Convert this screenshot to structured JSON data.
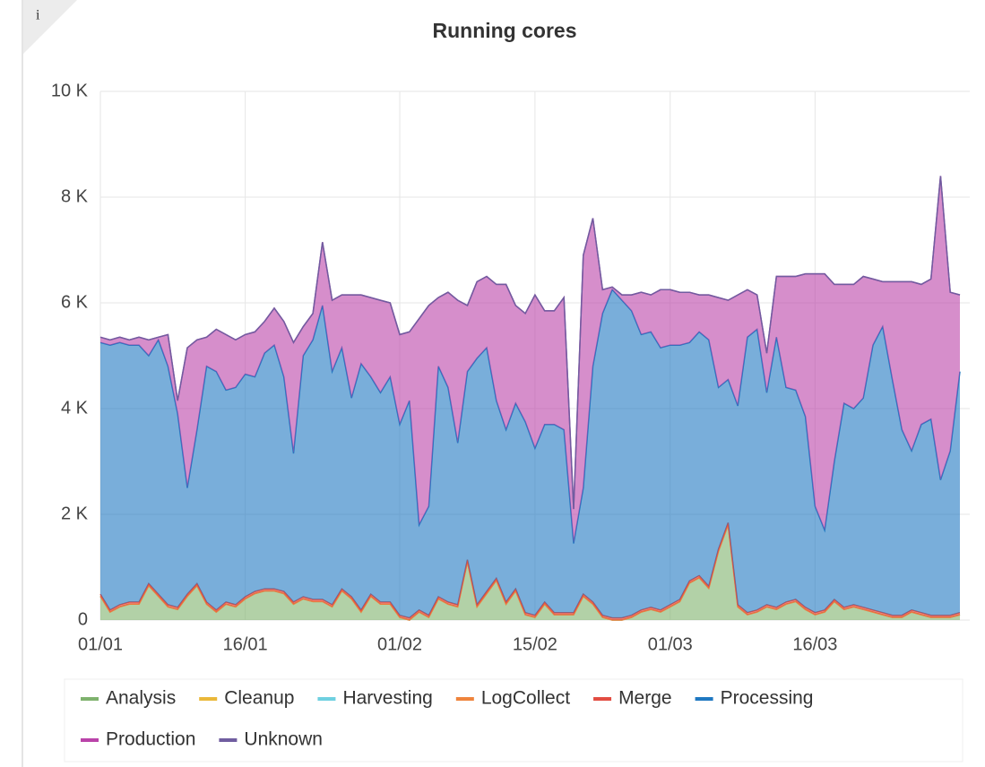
{
  "chart_data": {
    "type": "stacked_area",
    "title": "Running cores",
    "categories": [
      "01/01",
      null,
      null,
      null,
      null,
      null,
      null,
      null,
      null,
      null,
      null,
      null,
      null,
      null,
      null,
      "16/01",
      null,
      null,
      null,
      null,
      null,
      null,
      null,
      null,
      null,
      null,
      null,
      null,
      null,
      null,
      null,
      "01/02",
      null,
      null,
      null,
      null,
      null,
      null,
      null,
      null,
      null,
      null,
      null,
      null,
      null,
      "15/02",
      null,
      null,
      null,
      null,
      null,
      null,
      null,
      null,
      null,
      null,
      null,
      null,
      null,
      "01/03",
      null,
      null,
      null,
      null,
      null,
      null,
      null,
      null,
      null,
      null,
      null,
      null,
      null,
      null,
      "16/03",
      null,
      null,
      null,
      null,
      null,
      null,
      null,
      null,
      null,
      null,
      null,
      null,
      null,
      null,
      null
    ],
    "ylim": [
      0,
      10000
    ],
    "yticks": [
      0,
      {
        "value": 2000,
        "label": "2 K"
      },
      {
        "value": 4000,
        "label": "4 K"
      },
      {
        "value": 6000,
        "label": "6 K"
      },
      {
        "value": 8000,
        "label": "8 K"
      },
      {
        "value": 10000,
        "label": "10 K"
      }
    ],
    "grid": true,
    "legend": "bottom",
    "series": [
      {
        "name": "Analysis",
        "color": "#7eb26d",
        "values": [
          450,
          150,
          250,
          300,
          300,
          650,
          450,
          250,
          200,
          450,
          650,
          300,
          150,
          300,
          250,
          400,
          500,
          550,
          550,
          500,
          300,
          400,
          350,
          350,
          250,
          550,
          400,
          150,
          450,
          300,
          300,
          50,
          0,
          150,
          50,
          400,
          300,
          250,
          1100,
          250,
          500,
          750,
          300,
          550,
          100,
          50,
          300,
          100,
          100,
          100,
          450,
          300,
          50,
          0,
          0,
          50,
          150,
          200,
          150,
          250,
          350,
          700,
          800,
          600,
          1300,
          1800,
          250,
          100,
          150,
          250,
          200,
          300,
          350,
          200,
          100,
          150,
          350,
          200,
          250,
          200,
          150,
          100,
          50,
          50,
          150,
          100,
          50,
          50,
          50,
          100
        ]
      },
      {
        "name": "Cleanup",
        "color": "#eab839",
        "values": [
          0,
          0,
          0,
          0,
          0,
          0,
          0,
          0,
          0,
          0,
          0,
          0,
          0,
          0,
          0,
          0,
          0,
          0,
          0,
          0,
          0,
          0,
          0,
          0,
          0,
          0,
          0,
          0,
          0,
          0,
          0,
          0,
          0,
          0,
          0,
          0,
          0,
          0,
          0,
          0,
          0,
          0,
          0,
          0,
          0,
          0,
          0,
          0,
          0,
          0,
          0,
          0,
          0,
          0,
          0,
          0,
          0,
          0,
          0,
          0,
          0,
          0,
          0,
          0,
          0,
          0,
          0,
          0,
          0,
          0,
          0,
          0,
          0,
          0,
          0,
          0,
          0,
          0,
          0,
          0,
          0,
          0,
          0,
          0,
          0,
          0,
          0,
          0,
          0,
          0
        ]
      },
      {
        "name": "Harvesting",
        "color": "#6ed0e0",
        "values": [
          0,
          0,
          0,
          0,
          0,
          0,
          0,
          0,
          0,
          0,
          0,
          0,
          0,
          0,
          0,
          0,
          0,
          0,
          0,
          0,
          0,
          0,
          0,
          0,
          0,
          0,
          0,
          0,
          0,
          0,
          0,
          0,
          0,
          0,
          0,
          0,
          0,
          0,
          0,
          0,
          0,
          0,
          0,
          0,
          0,
          0,
          0,
          0,
          0,
          0,
          0,
          0,
          0,
          0,
          0,
          0,
          0,
          0,
          0,
          0,
          0,
          0,
          0,
          0,
          0,
          0,
          0,
          0,
          0,
          0,
          0,
          0,
          0,
          0,
          0,
          0,
          0,
          0,
          0,
          0,
          0,
          0,
          0,
          0,
          0,
          0,
          0,
          0,
          0,
          0
        ]
      },
      {
        "name": "LogCollect",
        "color": "#ef843c",
        "values": [
          0,
          0,
          0,
          0,
          0,
          0,
          0,
          0,
          0,
          0,
          0,
          0,
          0,
          0,
          0,
          0,
          0,
          0,
          0,
          0,
          0,
          0,
          0,
          0,
          0,
          0,
          0,
          0,
          0,
          0,
          0,
          0,
          0,
          0,
          0,
          0,
          0,
          0,
          0,
          0,
          0,
          0,
          0,
          0,
          0,
          0,
          0,
          0,
          0,
          0,
          0,
          0,
          0,
          0,
          0,
          0,
          0,
          0,
          0,
          0,
          0,
          0,
          0,
          0,
          0,
          0,
          0,
          0,
          0,
          0,
          0,
          0,
          0,
          0,
          0,
          0,
          0,
          0,
          0,
          0,
          0,
          0,
          0,
          0,
          0,
          0,
          0,
          0,
          0,
          0
        ]
      },
      {
        "name": "Merge",
        "color": "#e24d42",
        "values": [
          40,
          40,
          40,
          40,
          40,
          40,
          40,
          40,
          40,
          40,
          40,
          40,
          40,
          40,
          40,
          40,
          40,
          40,
          40,
          40,
          40,
          40,
          40,
          40,
          40,
          40,
          40,
          40,
          40,
          40,
          40,
          40,
          40,
          40,
          40,
          40,
          40,
          40,
          40,
          40,
          40,
          40,
          40,
          40,
          40,
          40,
          40,
          40,
          40,
          40,
          40,
          40,
          40,
          40,
          40,
          40,
          40,
          40,
          40,
          40,
          40,
          40,
          40,
          40,
          40,
          40,
          40,
          40,
          40,
          40,
          40,
          40,
          40,
          40,
          40,
          40,
          40,
          40,
          40,
          40,
          40,
          40,
          40,
          40,
          40,
          40,
          40,
          40,
          40,
          40
        ]
      },
      {
        "name": "Processing",
        "color": "#1f78c1",
        "values": [
          4760,
          5010,
          4960,
          4860,
          4860,
          4310,
          4810,
          4510,
          3660,
          2010,
          2910,
          4460,
          4510,
          4010,
          4110,
          4210,
          4060,
          4460,
          4610,
          4060,
          2810,
          4560,
          4910,
          5560,
          4410,
          4560,
          3760,
          4660,
          4110,
          3960,
          4260,
          3610,
          4110,
          1610,
          2060,
          4360,
          4060,
          3060,
          3560,
          4660,
          4610,
          3360,
          3260,
          3510,
          3610,
          3160,
          3360,
          3560,
          3460,
          1310,
          2010,
          4460,
          5710,
          6210,
          6010,
          5760,
          5210,
          5210,
          4960,
          4910,
          4810,
          4510,
          4610,
          4660,
          3060,
          2710,
          3760,
          5210,
          5310,
          4010,
          5110,
          4060,
          3960,
          3610,
          2010,
          1510,
          2610,
          3860,
          3710,
          3960,
          5010,
          5410,
          4460,
          3510,
          3010,
          3560,
          3710,
          2560,
          3110,
          4560
        ]
      },
      {
        "name": "Production",
        "color": "#ba43a9",
        "values": [
          100,
          100,
          100,
          100,
          150,
          300,
          50,
          600,
          250,
          2650,
          1700,
          550,
          800,
          1050,
          900,
          750,
          850,
          600,
          700,
          1050,
          2100,
          550,
          500,
          1200,
          1350,
          1000,
          1950,
          1300,
          1500,
          1750,
          1400,
          1700,
          1300,
          3900,
          3800,
          1300,
          1800,
          2700,
          1250,
          1450,
          1350,
          2200,
          2750,
          1850,
          2050,
          2900,
          2150,
          2150,
          2500,
          650,
          4400,
          2800,
          450,
          50,
          100,
          300,
          800,
          700,
          1100,
          1050,
          1000,
          950,
          700,
          850,
          1700,
          1500,
          2100,
          900,
          650,
          750,
          1150,
          2100,
          2150,
          2700,
          4400,
          4850,
          3350,
          2250,
          2350,
          2300,
          1250,
          850,
          1850,
          2800,
          3200,
          2650,
          2650,
          5750,
          3000,
          1450
        ]
      },
      {
        "name": "Unknown",
        "color": "#705da0",
        "values": [
          0,
          0,
          0,
          0,
          0,
          0,
          0,
          0,
          0,
          0,
          0,
          0,
          0,
          0,
          0,
          0,
          0,
          0,
          0,
          0,
          0,
          0,
          0,
          0,
          0,
          0,
          0,
          0,
          0,
          0,
          0,
          0,
          0,
          0,
          0,
          0,
          0,
          0,
          0,
          0,
          0,
          0,
          0,
          0,
          0,
          0,
          0,
          0,
          0,
          0,
          0,
          0,
          0,
          0,
          0,
          0,
          0,
          0,
          0,
          0,
          0,
          0,
          0,
          0,
          0,
          0,
          0,
          0,
          0,
          0,
          0,
          0,
          0,
          0,
          0,
          0,
          0,
          0,
          0,
          0,
          0,
          0,
          0,
          0,
          0,
          0,
          0,
          0,
          0,
          0
        ]
      }
    ]
  }
}
